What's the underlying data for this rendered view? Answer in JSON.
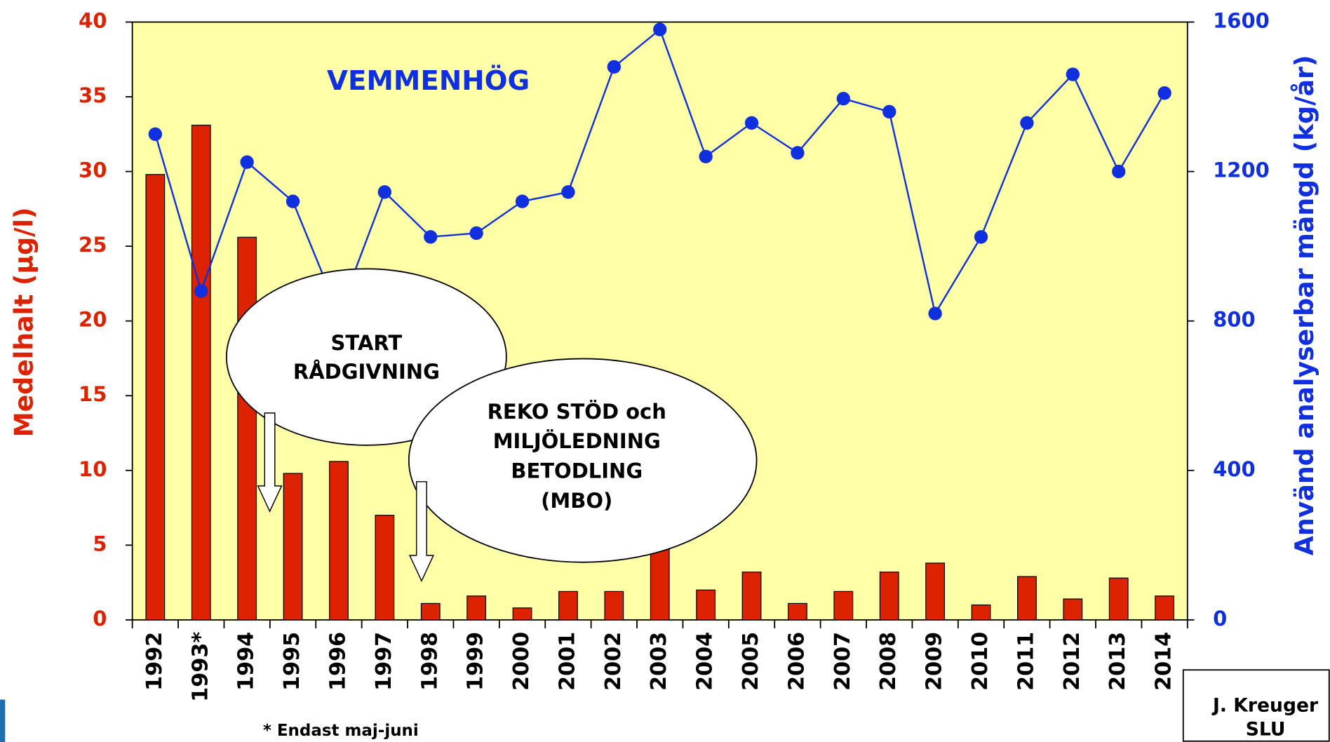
{
  "chart_data": {
    "type": "bar_line",
    "title": "VEMMENHÖG",
    "y_label": "Medelhalt (µg/l)",
    "y2_label": "Använd analyserbar mängd (kg/år)",
    "categories": [
      "1992",
      "1993*",
      "1994",
      "1995",
      "1996",
      "1997",
      "1998",
      "1999",
      "2000",
      "2001",
      "2002",
      "2003",
      "2004",
      "2005",
      "2006",
      "2007",
      "2008",
      "2009",
      "2010",
      "2011",
      "2012",
      "2013",
      "2014"
    ],
    "series": [
      {
        "color": "#dd2200",
        "values": [
          29.8,
          33.1,
          25.6,
          9.8,
          10.6,
          7.0,
          1.1,
          1.6,
          0.8,
          1.9,
          1.9,
          5.0,
          2.0,
          3.2,
          1.1,
          1.9,
          3.2,
          3.8,
          1.0,
          2.9,
          1.4,
          2.8,
          1.6
        ]
      },
      {
        "color": "#1030e0",
        "axis": "y2",
        "values": [
          1300,
          880,
          1225,
          1120,
          820,
          1145,
          1025,
          1035,
          1120,
          1145,
          1480,
          1580,
          1240,
          1330,
          1250,
          1395,
          1360,
          820,
          1025,
          1330,
          1460,
          1200,
          1410
        ]
      }
    ],
    "ylim": [
      0,
      40
    ],
    "yticks": [
      0,
      5,
      10,
      15,
      20,
      25,
      30,
      35,
      40
    ],
    "y2lim": [
      0,
      1600
    ],
    "y2ticks": [
      0,
      400,
      800,
      1200,
      1600
    ],
    "plot_background": "#ffffa8",
    "callouts": [
      [
        "START",
        "RÅDGIVNING"
      ],
      [
        "REKO STÖD och",
        "MILJÖLEDNING",
        "BETODLING",
        "(MBO)"
      ]
    ],
    "footnote": "* Endast maj-juni",
    "credit": [
      "J. Kreuger",
      "SLU"
    ]
  }
}
